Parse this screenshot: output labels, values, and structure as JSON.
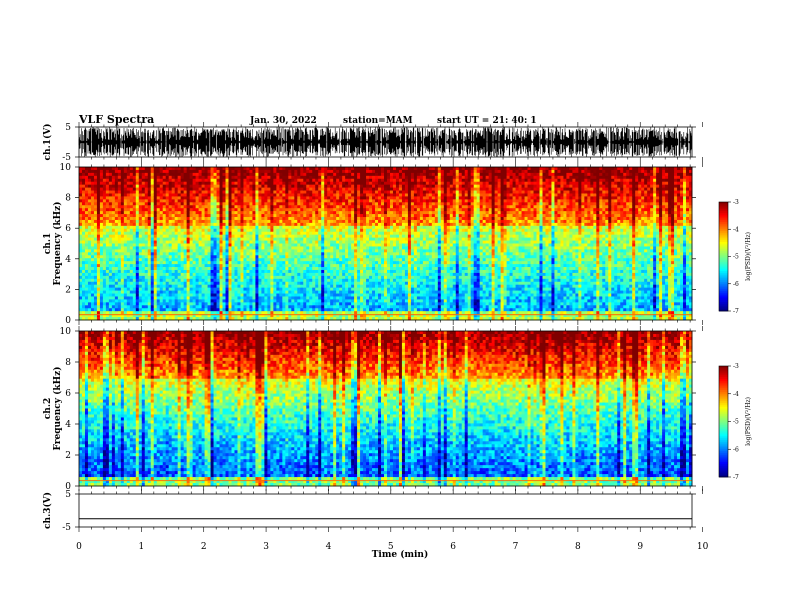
{
  "header": {
    "title": "VLF Spectra",
    "date": "Jan. 30, 2022",
    "station": "station=MAM",
    "start": "start UT =  21: 40: 1"
  },
  "chart_data": [
    {
      "type": "line",
      "name": "waveform-ch1",
      "ylabel": "ch.1(V)",
      "ylim": [
        -5,
        5
      ],
      "yticks": [
        "5",
        "-5"
      ],
      "xlim": [
        0,
        10
      ],
      "description_signal": "dense burst oscillations saturating near +5 and -5 V"
    },
    {
      "type": "heatmap",
      "name": "spectrogram-ch1",
      "ylabel_top": "ch.1",
      "ylabel": "Frequency (kHz)",
      "ylim": [
        0,
        10
      ],
      "yticks": [
        "0",
        "2",
        "4",
        "6",
        "8",
        "10"
      ],
      "xlim": [
        0,
        10
      ],
      "colorbar": {
        "label": "log(PSD)(V²/Hz)",
        "range": [
          -7,
          -3
        ],
        "ticks": [
          "-3",
          "-4",
          "-5",
          "-6",
          "-7"
        ]
      }
    },
    {
      "type": "heatmap",
      "name": "spectrogram-ch2",
      "ylabel_top": "ch.2",
      "ylabel": "Frequency (kHz)",
      "ylim": [
        0,
        10
      ],
      "yticks": [
        "0",
        "2",
        "4",
        "6",
        "8",
        "10"
      ],
      "xlim": [
        0,
        10
      ],
      "colorbar": {
        "label": "log(PSD)(V²/Hz)",
        "range": [
          -7,
          -3
        ],
        "ticks": [
          "-3",
          "-4",
          "-5",
          "-6",
          "-7"
        ]
      }
    },
    {
      "type": "line",
      "name": "waveform-ch3",
      "ylabel": "ch.3(V)",
      "ylim": [
        -5,
        5
      ],
      "yticks": [
        "5",
        "-5"
      ],
      "xlim": [
        0,
        10
      ],
      "values_constant": -2.5
    }
  ],
  "xaxis": {
    "label": "Time (min)",
    "ticks": [
      "0",
      "1",
      "2",
      "3",
      "4",
      "5",
      "6",
      "7",
      "8",
      "9",
      "10"
    ]
  },
  "colors": {
    "low": "#00007f",
    "mid": "#00ff7f",
    "high": "#ff0000"
  }
}
